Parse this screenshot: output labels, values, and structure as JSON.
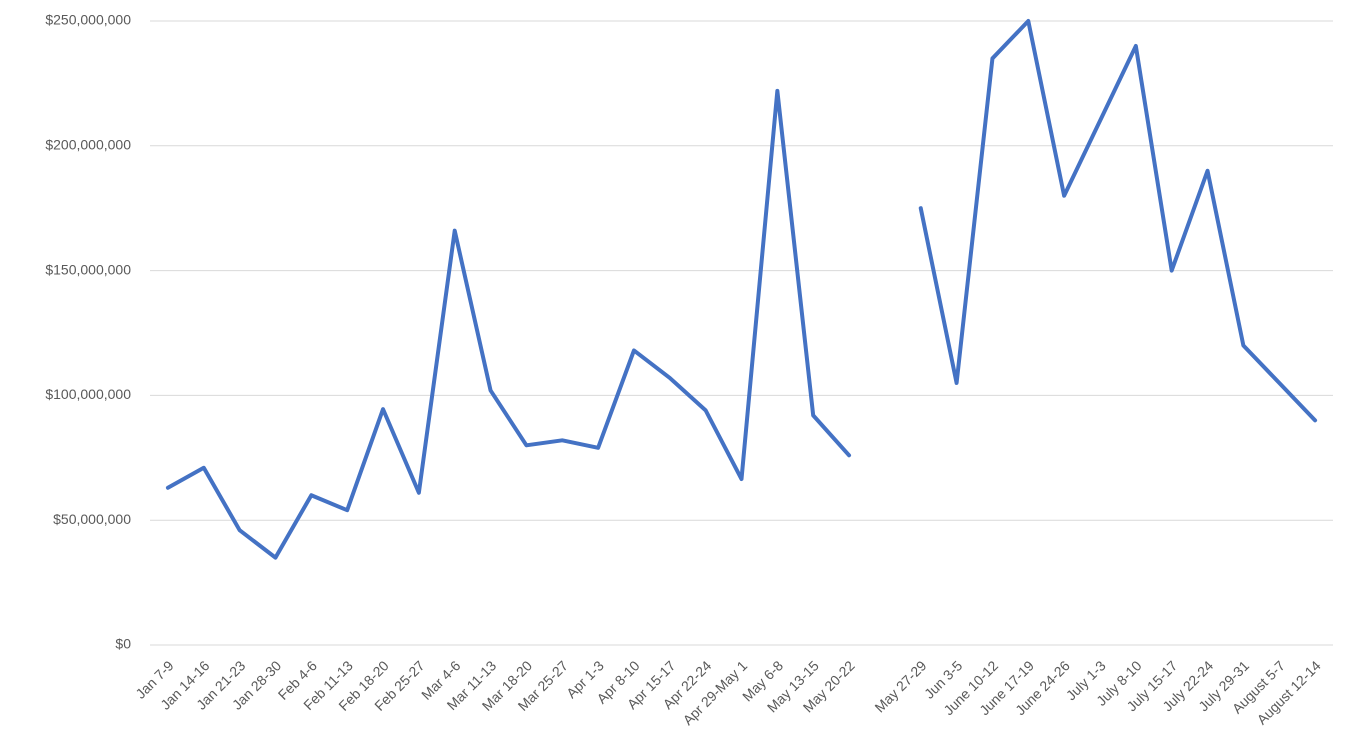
{
  "chart_data": {
    "type": "line",
    "categories": [
      "Jan 7-9",
      "Jan 14-16",
      "Jan 21-23",
      "Jan 28-30",
      "Feb 4-6",
      "Feb 11-13",
      "Feb 18-20",
      "Feb 25-27",
      "Mar 4-6",
      "Mar 11-13",
      "Mar 18-20",
      "Mar 25-27",
      "Apr 1-3",
      "Apr 8-10",
      "Apr 15-17",
      "Apr 22-24",
      "Apr 29-May 1",
      "May 6-8",
      "May 13-15",
      "May 20-22",
      null,
      "May 27-29",
      "Jun 3-5",
      "June 10-12",
      "June 17-19",
      "June 24-26",
      "July 1-3",
      "July 8-10",
      "July 15-17",
      "July 22-24",
      "July 29-31",
      "August 5-7",
      "August 12-14"
    ],
    "series": [
      {
        "color": "#4472c4",
        "values": [
          63000000,
          71000000,
          46000000,
          35000000,
          60000000,
          54000000,
          94500000,
          61000000,
          166000000,
          102000000,
          80000000,
          82000000,
          79000000,
          118000000,
          107000000,
          94000000,
          66500000,
          222000000,
          92000000,
          76000000,
          null,
          175000000,
          105000000,
          235000000,
          250000000,
          180000000,
          210000000,
          240000000,
          150000000,
          190000000,
          120000000,
          105000000,
          90000000
        ]
      }
    ],
    "ylim": [
      0,
      250000000
    ],
    "yticks": [
      {
        "value": 0,
        "label": "$0"
      },
      {
        "value": 50000000,
        "label": "$50,000,000"
      },
      {
        "value": 100000000,
        "label": "$100,000,000"
      },
      {
        "value": 150000000,
        "label": "$150,000,000"
      },
      {
        "value": 200000000,
        "label": "$200,000,000"
      },
      {
        "value": 250000000,
        "label": "$250,000,000"
      }
    ],
    "grid": true
  }
}
